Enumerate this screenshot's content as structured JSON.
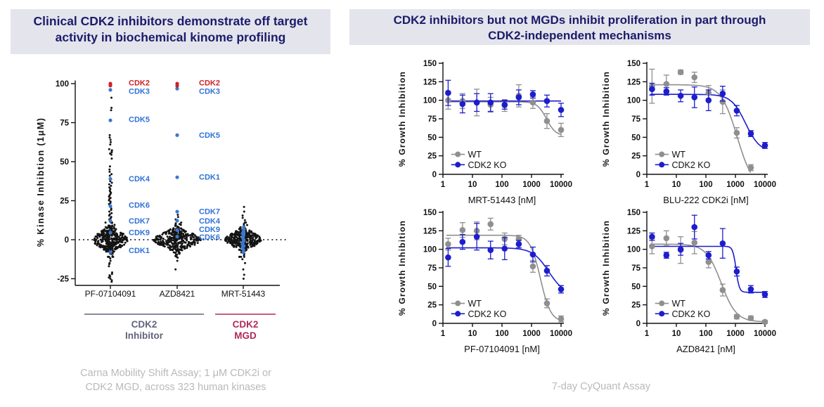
{
  "left_panel": {
    "title_line1": "Clinical CDK2 inhibitors demonstrate off target",
    "title_line2": "activity in biochemical kinome profiling",
    "caption_line1": "Carna Mobility Shift Assay; 1 μM CDK2i or",
    "caption_line2": "CDK2 MGD, across 323 human kinases"
  },
  "right_panel": {
    "title_line1": "CDK2 inhibitors but not MGDs inhibit proliferation in part through",
    "title_line2": "CDK2-independent mechanisms",
    "caption": "7-day CyQuant Assay"
  },
  "colors": {
    "navy": "#1b1b6a",
    "titlebar_bg": "#e4e4ed",
    "black_dot": "#141414",
    "blue_dot": "#3b78cf",
    "blue_label": "#2e72d8",
    "red": "#cf2128",
    "wt_gray": "#8f8f8f",
    "ko_blue": "#1d1dcd",
    "inhibitor_slate": "#63637f",
    "mgd_crimson": "#b02a5c",
    "caption_gray": "#b9b9b9"
  },
  "chart_data": [
    {
      "id": "kinome",
      "type": "scatter",
      "subtype": "beeswarm",
      "title": "Clinical CDK2 inhibitors demonstrate off target activity in biochemical kinome profiling",
      "ylabel": "% Kinase Inhibtion (1μM)",
      "ylim": [
        -30,
        105
      ],
      "yticks": [
        100,
        75,
        50,
        25,
        0,
        -25
      ],
      "zero_line": "dotted",
      "categories": [
        "PF-07104091",
        "AZD8421",
        "MRT-51443"
      ],
      "centers": [
        157,
        252,
        346
      ],
      "label_x": [
        183,
        283,
        null
      ],
      "groups": [
        {
          "label_line1": "CDK2",
          "label_line2": "Inhibitor",
          "x1": 120,
          "x2": 290,
          "cx": 205,
          "color": "#63637f"
        },
        {
          "label_line1": "CDK2",
          "label_line2": "MGD",
          "x1": 306,
          "x2": 392,
          "cx": 349,
          "color": "#b02a5c"
        }
      ],
      "compounds": [
        {
          "name": "PF-07104091",
          "red_points": [
            {
              "kinase": "CDK2",
              "value": 100
            },
            {
              "kinase": "CDK2",
              "value": 98.8
            }
          ],
          "red_label": {
            "text": "CDK2",
            "value": 100.5
          },
          "blue_points": [
            {
              "kinase": "CDK3",
              "value": 96,
              "label_value": 95
            },
            {
              "kinase": "CDK5",
              "value": 76.5,
              "label_value": 77
            },
            {
              "kinase": "CDK4",
              "value": 39,
              "label_value": 39
            },
            {
              "kinase": "CDK6",
              "value": 21.5,
              "label_value": 22
            },
            {
              "kinase": "CDK7",
              "value": 12,
              "label_value": 12
            },
            {
              "kinase": "CDK9",
              "value": 4.5,
              "label_value": 4.5
            },
            {
              "kinase": "CDK1",
              "value": -8,
              "label_value": -7
            }
          ],
          "blue_stack": [],
          "outliers": [
            91,
            84.5,
            83,
            67,
            65.5,
            64,
            62.5,
            61,
            58,
            57.3,
            56.6,
            56,
            55.2,
            54.5,
            52,
            47,
            45,
            43.5,
            42,
            41,
            37.5,
            36.5,
            35.5,
            34.5,
            33.5,
            32.5,
            31.5,
            30.8,
            30,
            29.2,
            28.4,
            27.6,
            26.8,
            26,
            25.2,
            24.4,
            23.6,
            22.8,
            20,
            19,
            18,
            17,
            16.2,
            15.4,
            14.6,
            13.8,
            13,
            -11,
            -12,
            -13.5,
            -15,
            -15.6,
            -17,
            -21,
            -22,
            -22.8,
            -23.5,
            -24.2,
            -25,
            -26,
            -27
          ],
          "swarm": {
            "n": 300,
            "sd": 4.2,
            "maxw": 26,
            "bw": 4.5,
            "n2": 45,
            "sd2": 8,
            "w2": 7,
            "seed": 11
          }
        },
        {
          "name": "AZD8421",
          "red_points": [
            {
              "kinase": "CDK2",
              "value": 100
            },
            {
              "kinase": "CDK2",
              "value": 98.6
            }
          ],
          "red_label": {
            "text": "CDK2",
            "value": 100.5
          },
          "blue_points": [
            {
              "kinase": "CDK3",
              "value": 96.8,
              "label_value": 95
            },
            {
              "kinase": "CDK5",
              "value": 67,
              "label_value": 67
            },
            {
              "kinase": "CDK1",
              "value": 40,
              "label_value": 40
            },
            {
              "kinase": "CDK7",
              "value": 18,
              "label_value": 18
            },
            {
              "kinase": "CDK4",
              "value": 12.2,
              "label_value": 12
            },
            {
              "kinase": "CDK9",
              "value": 6.2,
              "label_value": 6.5
            },
            {
              "kinase": "CDK6",
              "value": 2,
              "label_value": 1.5
            }
          ],
          "blue_stack": [],
          "outliers": [
            16,
            14.5,
            13,
            10.5,
            9.8,
            9,
            8.4,
            7.8,
            7.2,
            -6.5,
            -7.5,
            -8.5,
            -9.5,
            -10.5,
            -11.5,
            -13.5,
            -19
          ],
          "swarm": {
            "n": 300,
            "sd": 3.6,
            "maxw": 34,
            "bw": 4.2,
            "n2": 30,
            "sd2": 6,
            "w2": 6,
            "seed": 22
          }
        },
        {
          "name": "MRT-51443",
          "red_points": [],
          "red_label": null,
          "blue_points": [],
          "blue_stack": [
            8,
            6.5,
            5,
            4,
            3,
            2,
            1,
            0,
            -1,
            -2,
            -3,
            -4,
            -5,
            -6.5,
            -8
          ],
          "outliers": [
            21,
            18,
            15.5,
            14,
            12.5,
            11,
            10,
            -9,
            -10,
            -11,
            -12.5,
            -15,
            -19,
            -22.5,
            -25
          ],
          "swarm": {
            "n": 280,
            "sd": 3.4,
            "maxw": 26,
            "bw": 4.2,
            "n2": 30,
            "sd2": 6,
            "w2": 6,
            "seed": 33
          }
        }
      ],
      "footnote": "Carna Mobility Shift Assay; 1 μM CDK2i or CDK2 MGD, across 323 human kinases"
    },
    {
      "id": "mrt51443",
      "type": "line",
      "xlabel": "MRT-51443 [nM]",
      "ylabel": "% Growth Inhibition",
      "ylim": [
        0,
        150
      ],
      "yticks": [
        0,
        25,
        50,
        75,
        100,
        125,
        150
      ],
      "xticks": [
        1,
        10,
        100,
        1000,
        10000
      ],
      "xscale": "log",
      "x": [
        1.5,
        4.6,
        14,
        41,
        123,
        370,
        1111,
        3333,
        10000
      ],
      "legend_position": "bottom-left",
      "series": [
        {
          "name": "WT",
          "color": "#8f8f8f",
          "y": [
            100,
            99,
            97,
            94,
            93,
            106,
            97,
            72,
            60
          ],
          "err": [
            12,
            10,
            18,
            10,
            8,
            15,
            8,
            10,
            9
          ],
          "fit": {
            "top": 98,
            "bottom": 52,
            "ec50": 3200,
            "hill": 2.8
          }
        },
        {
          "name": "CDK2 KO",
          "color": "#1d1dcd",
          "y": [
            110,
            95,
            97,
            97,
            94,
            104,
            108,
            99,
            87
          ],
          "err": [
            17,
            12,
            12,
            12,
            6,
            10,
            5,
            8,
            9
          ],
          "fit": {
            "top": 99,
            "bottom": 99,
            "ec50": 1000,
            "hill": 1
          }
        }
      ]
    },
    {
      "id": "blu222",
      "type": "line",
      "xlabel": "BLU-222 CDK2i [nM]",
      "ylabel": "% Growth Inhibition",
      "ylim": [
        0,
        150
      ],
      "yticks": [
        0,
        25,
        50,
        75,
        100,
        125,
        150
      ],
      "xticks": [
        1,
        10,
        100,
        1000,
        10000
      ],
      "xscale": "log",
      "x": [
        1.5,
        4.6,
        14,
        41,
        123,
        370,
        1111,
        3333,
        10000
      ],
      "legend_position": "bottom-left",
      "series": [
        {
          "name": "WT",
          "color": "#8f8f8f",
          "y": [
            119,
            122,
            138,
            131,
            110,
            98,
            56,
            9,
            null
          ],
          "err": [
            23,
            12,
            3,
            7,
            10,
            16,
            7,
            4,
            null
          ],
          "fit": {
            "top": 121,
            "bottom": -20,
            "ec50": 1150,
            "hill": 1.6,
            "clip_bottom": 0
          }
        },
        {
          "name": "CDK2 KO",
          "color": "#1d1dcd",
          "y": [
            115,
            112,
            106,
            104,
            100,
            109,
            86,
            55,
            39
          ],
          "err": [
            8,
            5,
            8,
            14,
            14,
            10,
            7,
            4,
            4
          ],
          "fit": {
            "top": 108,
            "bottom": 30,
            "ec50": 2200,
            "hill": 1.8
          }
        }
      ]
    },
    {
      "id": "pf07104091",
      "type": "line",
      "xlabel": "PF-07104091 [nM]",
      "ylabel": "% Growth Inhibition",
      "ylim": [
        0,
        150
      ],
      "yticks": [
        0,
        25,
        50,
        75,
        100,
        125,
        150
      ],
      "xticks": [
        1,
        10,
        100,
        1000,
        10000
      ],
      "xscale": "log",
      "x": [
        1.5,
        4.6,
        14,
        41,
        123,
        370,
        1111,
        3333,
        10000
      ],
      "legend_position": "bottom-left",
      "series": [
        {
          "name": "WT",
          "color": "#8f8f8f",
          "y": [
            107,
            126,
            125,
            134,
            114,
            114,
            77,
            27,
            6
          ],
          "err": [
            8,
            10,
            12,
            8,
            8,
            5,
            8,
            6,
            4
          ],
          "fit": {
            "top": 119,
            "bottom": 2,
            "ec50": 2000,
            "hill": 2.5
          }
        },
        {
          "name": "CDK2 KO",
          "color": "#1d1dcd",
          "y": [
            89,
            110,
            117,
            99,
            101,
            107,
            93,
            71,
            46
          ],
          "err": [
            12,
            10,
            18,
            12,
            15,
            5,
            10,
            7,
            5
          ],
          "fit": {
            "top": 102,
            "bottom": 38,
            "ec50": 3800,
            "hill": 1.6
          }
        }
      ]
    },
    {
      "id": "azd8421",
      "type": "line",
      "xlabel": "AZD8421 [nM]",
      "ylabel": "% Growth Inhibition",
      "ylim": [
        0,
        150
      ],
      "yticks": [
        0,
        25,
        50,
        75,
        100,
        125,
        150
      ],
      "xticks": [
        1,
        10,
        100,
        1000,
        10000
      ],
      "xscale": "log",
      "x": [
        1.5,
        4.6,
        14,
        41,
        123,
        370,
        1111,
        3333,
        10000
      ],
      "legend_position": "bottom-left",
      "series": [
        {
          "name": "WT",
          "color": "#8f8f8f",
          "y": [
            104,
            115,
            99,
            109,
            83,
            45,
            9,
            7,
            2
          ],
          "err": [
            10,
            10,
            18,
            15,
            8,
            8,
            3,
            3,
            2
          ],
          "fit": {
            "top": 107,
            "bottom": 2,
            "ec50": 330,
            "hill": 1.7
          }
        },
        {
          "name": "CDK2 KO",
          "color": "#1d1dcd",
          "y": [
            117,
            92,
            100,
            130,
            92,
            108,
            70,
            46,
            39
          ],
          "err": [
            5,
            4,
            8,
            16,
            5,
            20,
            6,
            5,
            4
          ],
          "fit": {
            "top": 104,
            "bottom": 42,
            "ec50": 1050,
            "hill": 8
          }
        }
      ]
    }
  ]
}
